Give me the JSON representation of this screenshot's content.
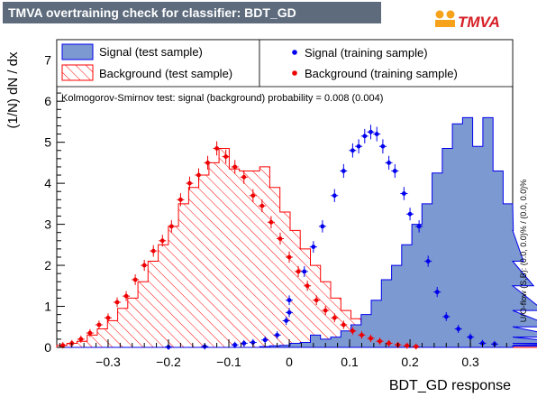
{
  "header": {
    "title": "TMVA overtraining check for classifier: BDT_GD",
    "logo_text": "TMVA",
    "logo_text_color": "#d72027",
    "title_bg_color": "#5d6b7d"
  },
  "chart_data": {
    "type": "histogram",
    "xlabel": "BDT_GD response",
    "ylabel": "(1/N) dN / dx",
    "xlim": [
      -0.385,
      0.37
    ],
    "ylim": [
      0,
      7.5
    ],
    "x_ticks": [
      -0.3,
      -0.2,
      -0.1,
      0,
      0.1,
      0.2,
      0.3
    ],
    "x_tick_labels": [
      "−0.3",
      "−0.2",
      "−0.1",
      "0",
      "0.1",
      "0.2",
      "0.3"
    ],
    "y_ticks": [
      0,
      1,
      2,
      3,
      4,
      5,
      6,
      7
    ],
    "bin_edges_start": -0.385,
    "bin_width": 0.0168,
    "signal_test": {
      "name": "Signal (test sample)",
      "color": "#7d99d1",
      "line_color": "#0000ee",
      "values": [
        0,
        0,
        0,
        0,
        0,
        0,
        0,
        0,
        0,
        0,
        0,
        0,
        0,
        0,
        0,
        0,
        0,
        0,
        0,
        0,
        0.02,
        0.04,
        0.05,
        0.1,
        0.12,
        0.3,
        0.2,
        0.25,
        0.4,
        0.55,
        0.8,
        1.15,
        1.65,
        2.0,
        2.5,
        3.0,
        3.5,
        4.25,
        4.85,
        5.45,
        5.6,
        4.9,
        5.6,
        4.3,
        3.5,
        2.85,
        2.1,
        1.5,
        0.9,
        0.5,
        0.25,
        0.1,
        0.05,
        0.05,
        0.03
      ]
    },
    "background_test": {
      "name": "Background (test sample)",
      "color": "#ff0000",
      "values": [
        0.05,
        0.1,
        0.15,
        0.3,
        0.45,
        0.65,
        0.95,
        1.2,
        1.6,
        2.1,
        2.5,
        2.95,
        3.5,
        3.9,
        4.2,
        4.5,
        4.85,
        4.35,
        4.3,
        4.3,
        4.4,
        3.9,
        3.3,
        2.85,
        2.4,
        2.0,
        1.6,
        1.2,
        0.9,
        0.7,
        0.6,
        0.6,
        0.45,
        0.35,
        0.25,
        0.2,
        0.15,
        0.1,
        0.07,
        0.05,
        0.04,
        0.03,
        0.02,
        0.02,
        0.01,
        0,
        0,
        0,
        0,
        0,
        0,
        0,
        0,
        0,
        0
      ]
    },
    "signal_training": {
      "name": "Signal (training sample)",
      "color": "#0000ee",
      "points": [
        [
          -0.2,
          0.01
        ],
        [
          -0.14,
          0.02
        ],
        [
          -0.09,
          0.06
        ],
        [
          -0.075,
          0.1
        ],
        [
          -0.06,
          0.12
        ],
        [
          -0.04,
          0.18
        ],
        [
          -0.02,
          0.3
        ],
        [
          -0.005,
          0.65
        ],
        [
          0.0,
          0.85
        ],
        [
          0.0,
          1.15
        ],
        [
          0.025,
          1.85
        ],
        [
          0.04,
          2.45
        ],
        [
          0.055,
          2.95
        ],
        [
          0.075,
          3.7
        ],
        [
          0.09,
          4.3
        ],
        [
          0.105,
          4.8
        ],
        [
          0.115,
          4.9
        ],
        [
          0.125,
          5.15
        ],
        [
          0.135,
          5.25
        ],
        [
          0.145,
          5.2
        ],
        [
          0.155,
          4.9
        ],
        [
          0.165,
          4.5
        ],
        [
          0.175,
          4.3
        ],
        [
          0.19,
          3.75
        ],
        [
          0.2,
          3.25
        ],
        [
          0.215,
          2.95
        ],
        [
          0.23,
          2.1
        ],
        [
          0.245,
          1.35
        ],
        [
          0.26,
          0.75
        ],
        [
          0.28,
          0.45
        ],
        [
          0.3,
          0.25
        ],
        [
          0.32,
          0.1
        ],
        [
          0.34,
          0.08
        ]
      ]
    },
    "background_training": {
      "name": "Background (training sample)",
      "color": "#ee0000",
      "points": [
        [
          -0.375,
          0.05
        ],
        [
          -0.36,
          0.1
        ],
        [
          -0.345,
          0.2
        ],
        [
          -0.33,
          0.35
        ],
        [
          -0.315,
          0.55
        ],
        [
          -0.3,
          0.72
        ],
        [
          -0.285,
          1.1
        ],
        [
          -0.27,
          1.25
        ],
        [
          -0.255,
          1.65
        ],
        [
          -0.24,
          2.0
        ],
        [
          -0.225,
          2.35
        ],
        [
          -0.21,
          2.6
        ],
        [
          -0.195,
          2.95
        ],
        [
          -0.18,
          3.6
        ],
        [
          -0.165,
          4.0
        ],
        [
          -0.15,
          4.2
        ],
        [
          -0.135,
          4.5
        ],
        [
          -0.12,
          4.85
        ],
        [
          -0.105,
          4.65
        ],
        [
          -0.09,
          4.4
        ],
        [
          -0.075,
          4.15
        ],
        [
          -0.06,
          3.7
        ],
        [
          -0.045,
          3.45
        ],
        [
          -0.03,
          3.05
        ],
        [
          -0.015,
          2.65
        ],
        [
          0.0,
          2.2
        ],
        [
          0.015,
          1.85
        ],
        [
          0.03,
          1.5
        ],
        [
          0.045,
          1.15
        ],
        [
          0.06,
          0.9
        ],
        [
          0.075,
          0.72
        ],
        [
          0.09,
          0.55
        ],
        [
          0.105,
          0.4
        ],
        [
          0.12,
          0.3
        ],
        [
          0.135,
          0.22
        ],
        [
          0.15,
          0.15
        ],
        [
          0.165,
          0.1
        ],
        [
          0.18,
          0.06
        ],
        [
          0.195,
          0.04
        ],
        [
          0.21,
          0.02
        ]
      ]
    },
    "legend": {
      "placement": "top",
      "entries": [
        "Signal (test sample)",
        "Background (test sample)",
        "Signal (training sample)",
        "Background (training sample)"
      ]
    },
    "annotation": "Kolmogorov-Smirnov test: signal (background) probability = 0.008 (0.004)",
    "side_annotation": "U/O-flow (S,B): (0.0, 0.0)% / (0.0, 0.0)%",
    "grid": false
  }
}
